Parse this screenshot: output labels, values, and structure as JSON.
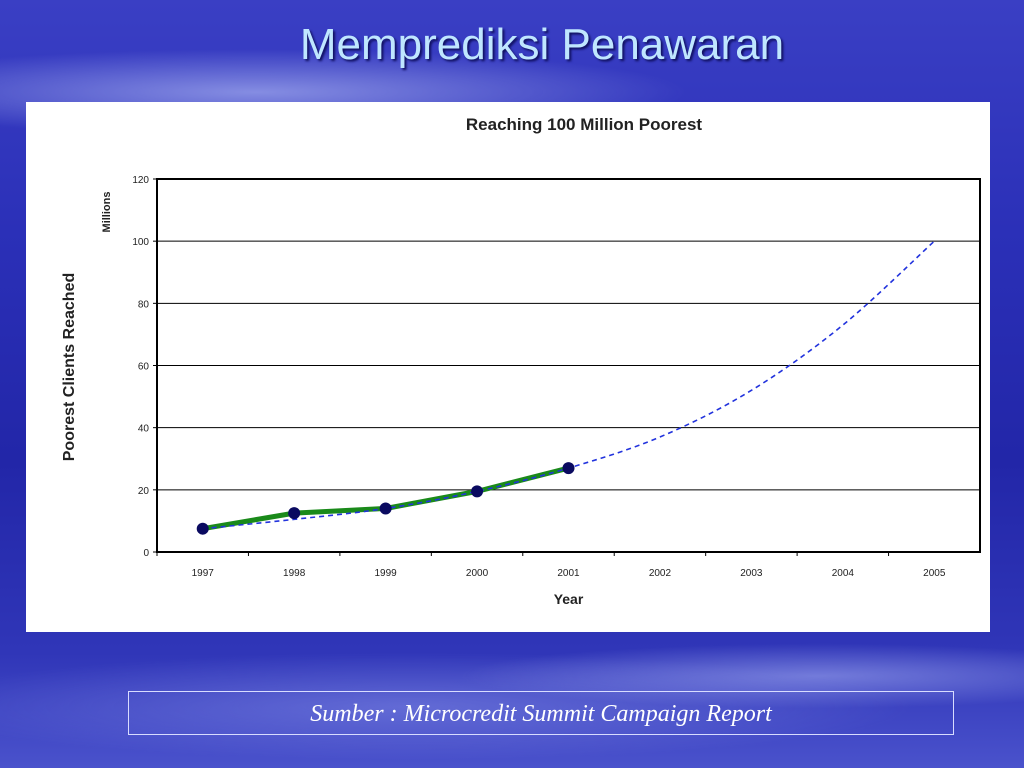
{
  "slide": {
    "title": "Memprediksi Penawaran",
    "source": "Sumber : Microcredit Summit Campaign Report"
  },
  "chart_data": {
    "type": "line",
    "title": "Reaching 100 Million Poorest",
    "xlabel": "Year",
    "ylabel": "Poorest Clients Reached",
    "yunit": "Millions",
    "categories": [
      "1997",
      "1998",
      "1999",
      "2000",
      "2001",
      "2002",
      "2003",
      "2004",
      "2005"
    ],
    "ylim": [
      0,
      120
    ],
    "yticks": [
      0,
      20,
      40,
      60,
      80,
      100,
      120
    ],
    "grid": true,
    "series": [
      {
        "style": "solid",
        "color": "#1a8a1a",
        "marker_color": "#0a0a60",
        "values": [
          7.5,
          12.5,
          14,
          19.5,
          27,
          null,
          null,
          null,
          null
        ]
      },
      {
        "style": "dashed",
        "color": "#2233dd",
        "values": [
          7.5,
          10.5,
          14,
          19.5,
          27,
          37,
          52,
          73,
          100
        ]
      }
    ]
  }
}
